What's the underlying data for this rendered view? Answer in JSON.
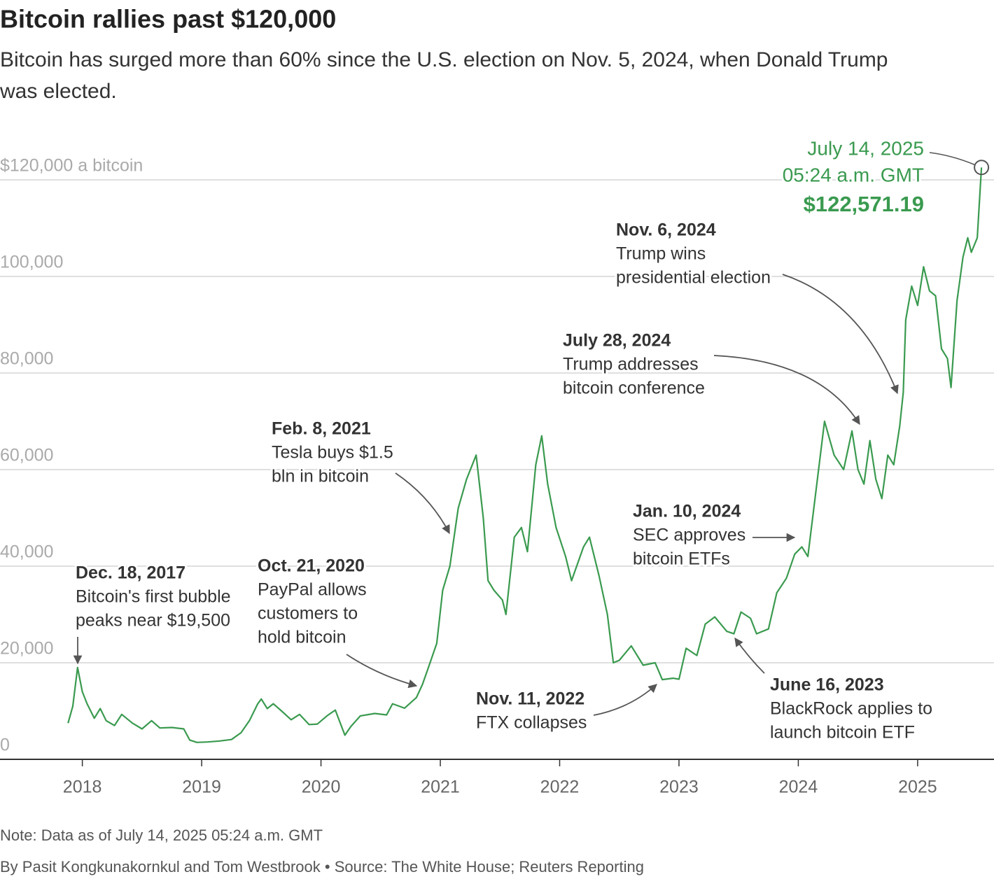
{
  "chart_data": {
    "type": "line",
    "title": "Bitcoin rallies past $120,000",
    "subtitle": [
      "Bitcoin has surged more than 60% since the U.S. election on Nov. 5, 2024, when Donald Trump",
      "was elected."
    ],
    "color": "#3a9a4f",
    "x": [
      2017.88,
      2017.92,
      2017.96,
      2018.0,
      2018.04,
      2018.1,
      2018.15,
      2018.2,
      2018.27,
      2018.33,
      2018.42,
      2018.5,
      2018.58,
      2018.65,
      2018.75,
      2018.85,
      2018.9,
      2018.96,
      2019.05,
      2019.15,
      2019.25,
      2019.33,
      2019.4,
      2019.47,
      2019.5,
      2019.55,
      2019.6,
      2019.67,
      2019.75,
      2019.82,
      2019.9,
      2019.97,
      2020.05,
      2020.12,
      2020.2,
      2020.25,
      2020.33,
      2020.45,
      2020.55,
      2020.6,
      2020.7,
      2020.8,
      2020.85,
      2020.9,
      2020.97,
      2021.02,
      2021.08,
      2021.15,
      2021.22,
      2021.3,
      2021.36,
      2021.4,
      2021.45,
      2021.52,
      2021.55,
      2021.62,
      2021.68,
      2021.73,
      2021.8,
      2021.85,
      2021.9,
      2021.97,
      2022.05,
      2022.1,
      2022.2,
      2022.25,
      2022.33,
      2022.4,
      2022.45,
      2022.5,
      2022.6,
      2022.7,
      2022.8,
      2022.86,
      2022.95,
      2023.0,
      2023.06,
      2023.15,
      2023.22,
      2023.3,
      2023.4,
      2023.46,
      2023.52,
      2023.6,
      2023.65,
      2023.75,
      2023.82,
      2023.9,
      2023.97,
      2024.03,
      2024.08,
      2024.13,
      2024.18,
      2024.22,
      2024.3,
      2024.38,
      2024.45,
      2024.5,
      2024.55,
      2024.6,
      2024.65,
      2024.7,
      2024.75,
      2024.8,
      2024.85,
      2024.88,
      2024.9,
      2024.95,
      2025.0,
      2025.05,
      2025.1,
      2025.15,
      2025.2,
      2025.25,
      2025.28,
      2025.33,
      2025.38,
      2025.42,
      2025.45,
      2025.5,
      2025.535
    ],
    "values": [
      7500,
      11000,
      19000,
      14000,
      11500,
      8500,
      10500,
      8000,
      7000,
      9300,
      7500,
      6300,
      8000,
      6500,
      6600,
      6300,
      4000,
      3500,
      3600,
      3800,
      4100,
      5500,
      8000,
      11500,
      12500,
      10500,
      11500,
      10000,
      8200,
      9300,
      7200,
      7300,
      9000,
      10200,
      5000,
      6800,
      9000,
      9500,
      9200,
      11500,
      10600,
      12800,
      15500,
      19000,
      24000,
      35000,
      40000,
      52000,
      58000,
      63000,
      50000,
      37000,
      35000,
      33000,
      30000,
      46000,
      48000,
      43000,
      61000,
      67000,
      57000,
      48000,
      42000,
      37000,
      44000,
      46000,
      38000,
      30000,
      20000,
      20500,
      23500,
      19500,
      20000,
      16500,
      16800,
      16600,
      23000,
      21500,
      28000,
      29500,
      26500,
      26000,
      30500,
      29200,
      26000,
      27000,
      34500,
      37500,
      42500,
      44000,
      42000,
      52000,
      62000,
      70000,
      63000,
      60000,
      68000,
      60000,
      57000,
      66000,
      58000,
      54000,
      63000,
      61000,
      69000,
      76000,
      91000,
      98000,
      94000,
      102000,
      97000,
      96000,
      85000,
      83000,
      77000,
      95000,
      104000,
      108000,
      105000,
      108000,
      122571.19
    ],
    "xlim": [
      2017.31,
      2025.64
    ],
    "xticks": [
      2018,
      2019,
      2020,
      2021,
      2022,
      2023,
      2024,
      2025
    ],
    "ylim": [
      0,
      125000
    ],
    "yticks": [
      0,
      {
        "value": 20000,
        "label": "20,000"
      },
      {
        "value": 40000,
        "label": "40,000"
      },
      {
        "value": 60000,
        "label": "60,000"
      },
      {
        "value": 80000,
        "label": "80,000"
      },
      {
        "value": 100000,
        "label": "100,000"
      },
      {
        "value": 120000,
        "label": "$120,000 a bitcoin"
      }
    ],
    "grid": true,
    "highlight": {
      "label": [
        "July 14, 2025",
        "05:24 a.m. GMT"
      ],
      "value": 122571.19,
      "value_label": "$122,571.19"
    },
    "annotations": [
      {
        "date": "Dec. 18, 2017",
        "text": [
          "Bitcoin's first bubble",
          "peaks near $19,500"
        ]
      },
      {
        "date": "Oct. 21, 2020",
        "text": [
          "PayPal allows",
          "customers to",
          "hold bitcoin"
        ]
      },
      {
        "date": "Feb. 8, 2021",
        "text": [
          "Tesla buys $1.5",
          "bln in bitcoin"
        ]
      },
      {
        "date": "Nov. 11, 2022",
        "text": [
          "FTX collapses"
        ]
      },
      {
        "date": "June 16, 2023",
        "text": [
          "BlackRock applies to",
          "launch bitcoin ETF"
        ]
      },
      {
        "date": "Jan. 10, 2024",
        "text": [
          "SEC approves",
          "bitcoin ETFs"
        ]
      },
      {
        "date": "July 28, 2024",
        "text": [
          "Trump addresses",
          "bitcoin conference"
        ]
      },
      {
        "date": "Nov. 6, 2024",
        "text": [
          "Trump wins",
          "presidential election"
        ]
      }
    ],
    "note": "Note: Data as of July 14, 2025 05:24 a.m. GMT",
    "source": "By Pasit Kongkunakornkul and Tom Westbrook • Source: The White House; Reuters Reporting"
  }
}
